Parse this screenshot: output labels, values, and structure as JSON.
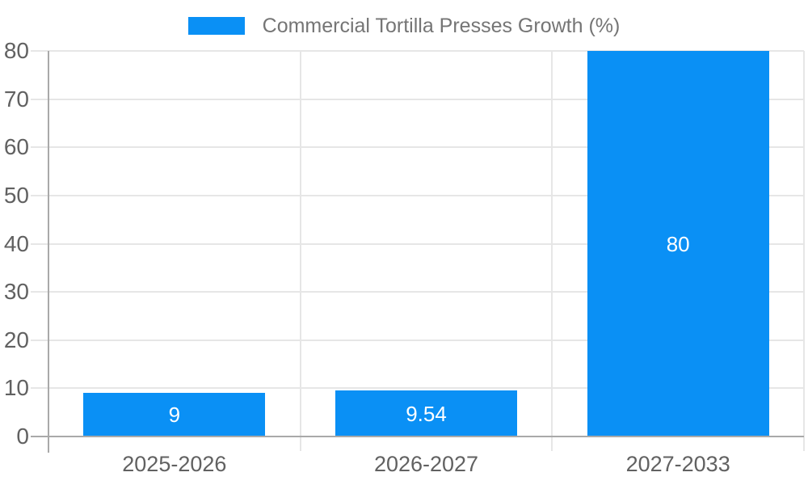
{
  "chart_data": {
    "type": "bar",
    "legend": {
      "position": "top",
      "label": "Commercial Tortilla Presses Growth (%)"
    },
    "categories": [
      "2025-2026",
      "2026-2027",
      "2027-2033"
    ],
    "values": [
      9,
      9.54,
      80
    ],
    "bar_labels": [
      "9",
      "9.54",
      "80"
    ],
    "xlabel": "",
    "ylabel": "",
    "ylim": [
      0,
      80
    ],
    "yticks": [
      0,
      10,
      20,
      30,
      40,
      50,
      60,
      70,
      80
    ],
    "grid": true
  },
  "colors": {
    "bar": "#0a90f5",
    "grid": "#e6e6e6",
    "axis": "#a9a9a9",
    "tick_text": "#616161",
    "legend_text": "#757575",
    "bar_label_text": "#ffffff",
    "background": "#ffffff"
  }
}
